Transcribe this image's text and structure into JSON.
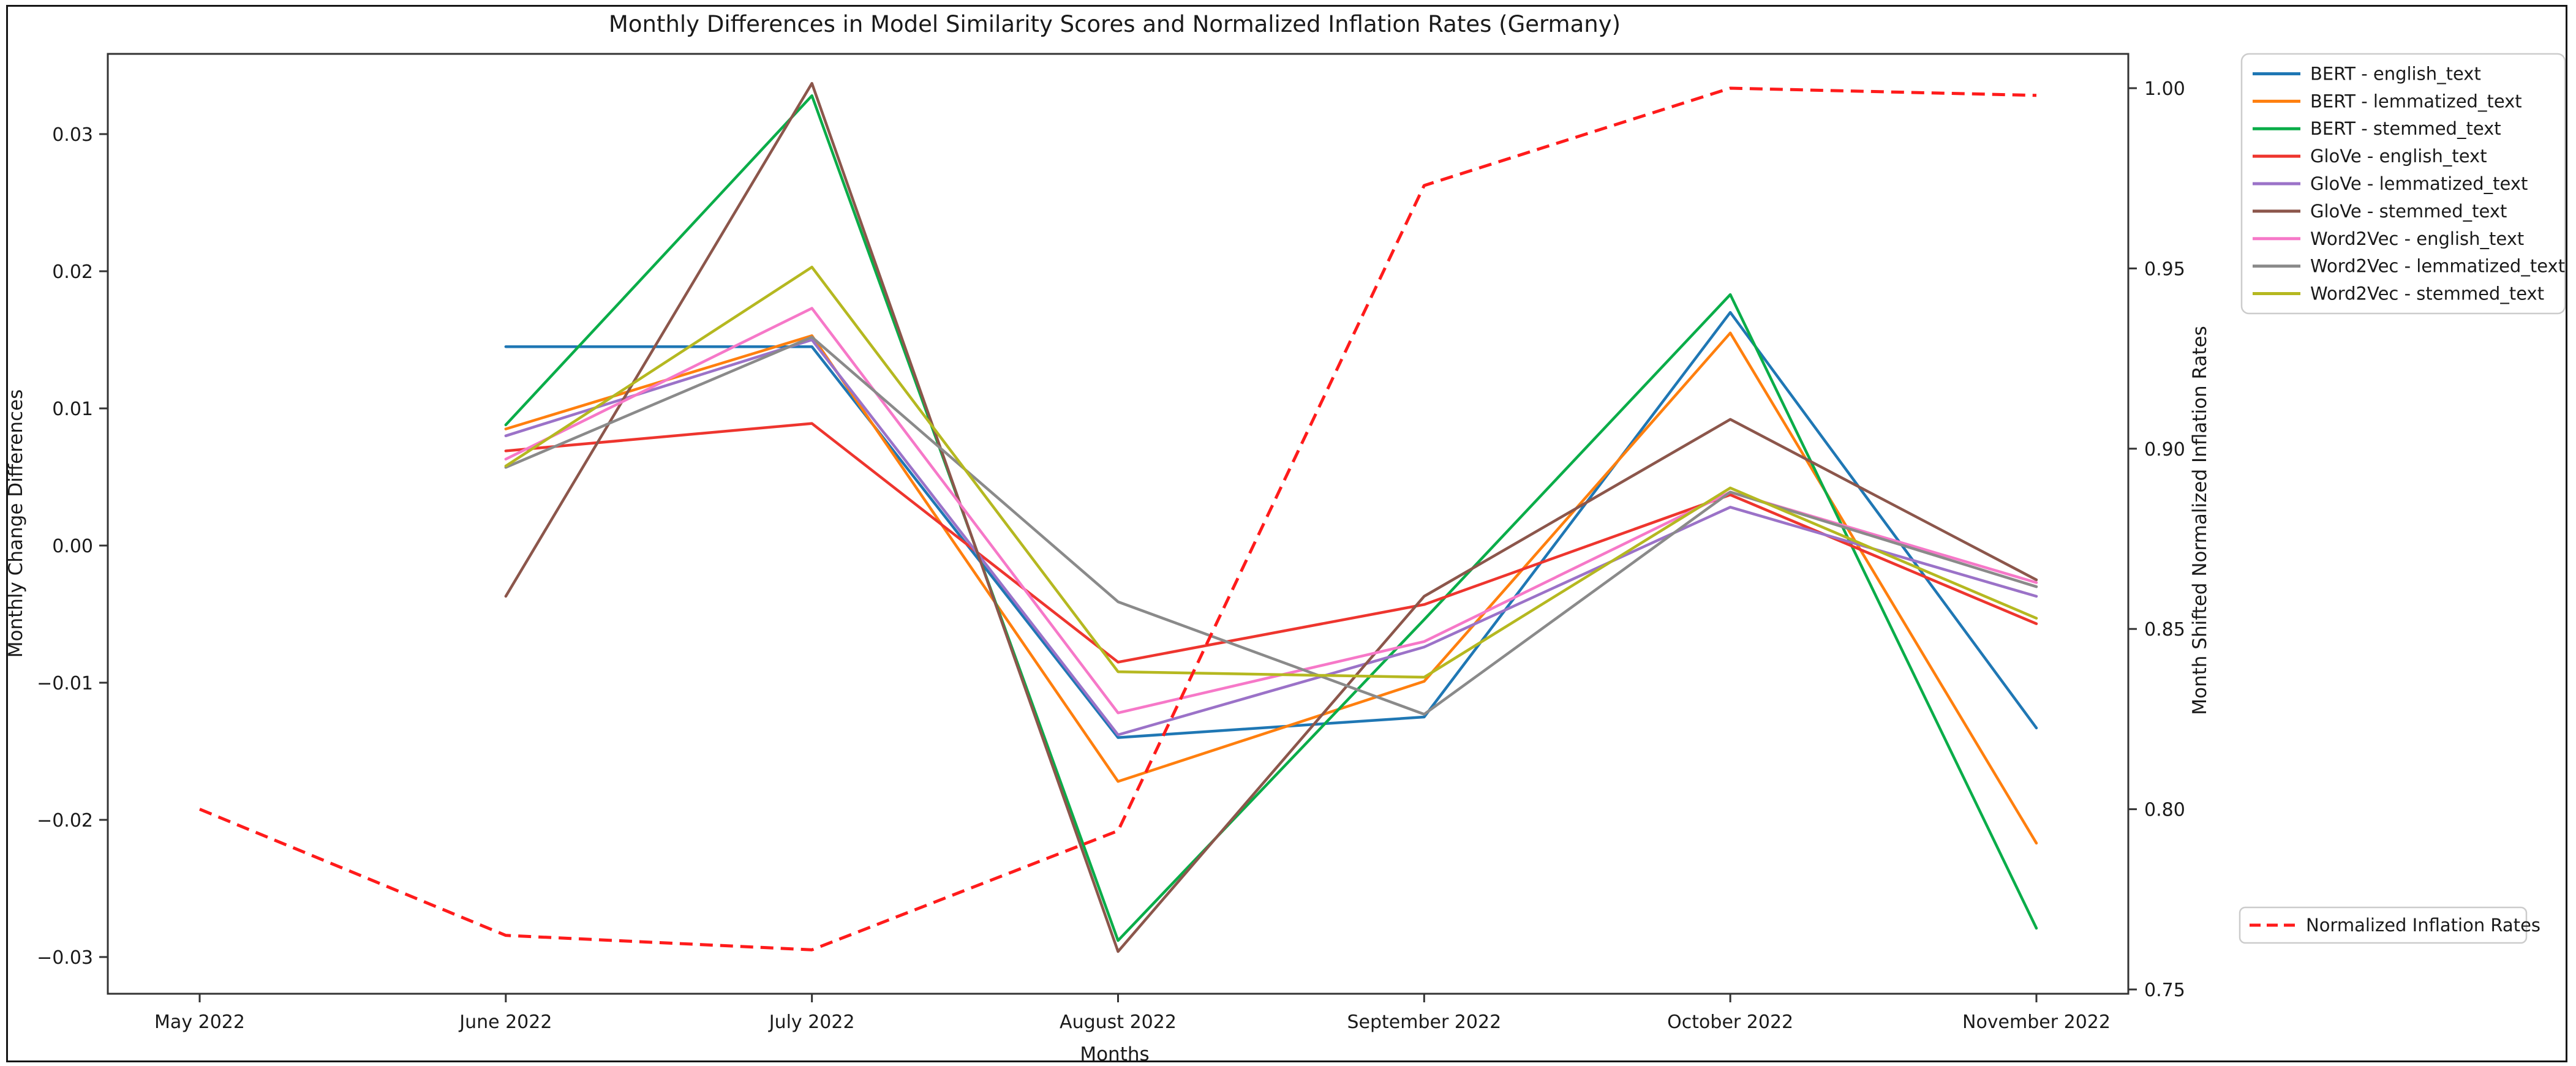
{
  "figure": {
    "title": "Monthly Differences in Model Similarity Scores and Normalized Inflation Rates (Germany)"
  },
  "chart_data": {
    "type": "line",
    "title": "Monthly Differences in Model Similarity Scores and Normalized Inflation Rates (Germany)",
    "xlabel": "Months",
    "categories": [
      "May 2022",
      "June 2022",
      "July 2022",
      "August 2022",
      "September 2022",
      "October 2022",
      "November 2022"
    ],
    "grid": false,
    "left_axis": {
      "label": "Monthly Change Differences",
      "ticks": [
        0.03,
        0.02,
        0.01,
        0.0,
        -0.01,
        -0.02,
        -0.03
      ],
      "ylim": [
        -0.0327,
        0.0359
      ],
      "color": "#1a1a1a"
    },
    "right_axis": {
      "label": "Month Shifted Normalized Inflation Rates",
      "ticks": [
        1.0,
        0.95,
        0.9,
        0.85,
        0.8,
        0.75
      ],
      "ylim": [
        0.7488,
        1.0095
      ],
      "color": "#ff1b1b"
    },
    "series": [
      {
        "name": "BERT - english_text",
        "color": "#1f77b4",
        "values": [
          null,
          0.0145,
          0.0145,
          -0.014,
          -0.0125,
          0.017,
          -0.0133
        ]
      },
      {
        "name": "BERT - lemmatized_text",
        "color": "#ff7f0e",
        "values": [
          null,
          0.0085,
          0.0153,
          -0.0172,
          -0.0099,
          0.0155,
          -0.0217
        ]
      },
      {
        "name": "BERT - stemmed_text",
        "color": "#0aad49",
        "values": [
          null,
          0.0088,
          0.0328,
          -0.0288,
          -0.0054,
          0.0183,
          -0.0279
        ]
      },
      {
        "name": "GloVe - english_text",
        "color": "#ee352e",
        "values": [
          null,
          0.0069,
          0.0089,
          -0.0085,
          -0.0043,
          0.0037,
          -0.0057
        ]
      },
      {
        "name": "GloVe - lemmatized_text",
        "color": "#9b72c8",
        "values": [
          null,
          0.008,
          0.015,
          -0.0138,
          -0.0074,
          0.0028,
          -0.0037
        ]
      },
      {
        "name": "GloVe - stemmed_text",
        "color": "#8c564b",
        "values": [
          null,
          -0.0037,
          0.0337,
          -0.0296,
          -0.0037,
          0.0092,
          -0.0025
        ]
      },
      {
        "name": "Word2Vec - english_text",
        "color": "#f678c8",
        "values": [
          null,
          0.0063,
          0.0173,
          -0.0122,
          -0.007,
          0.0039,
          -0.0027
        ]
      },
      {
        "name": "Word2Vec - lemmatized_text",
        "color": "#8a8a8a",
        "values": [
          null,
          0.0057,
          0.0152,
          -0.0041,
          -0.0123,
          0.0039,
          -0.003
        ]
      },
      {
        "name": "Word2Vec - stemmed_text",
        "color": "#b5b820",
        "values": [
          null,
          0.0058,
          0.0203,
          -0.0092,
          -0.0096,
          0.0042,
          -0.0053
        ]
      }
    ],
    "inflation_series": {
      "name": "Normalized Inflation Rates",
      "color": "#ff1b1b",
      "style": "dashed",
      "axis": "right",
      "values": [
        0.8,
        0.765,
        0.761,
        0.794,
        0.973,
        1.0,
        0.998
      ]
    },
    "legend_main_position": "outside upper right",
    "legend_inflation_position": "outside lower right"
  }
}
